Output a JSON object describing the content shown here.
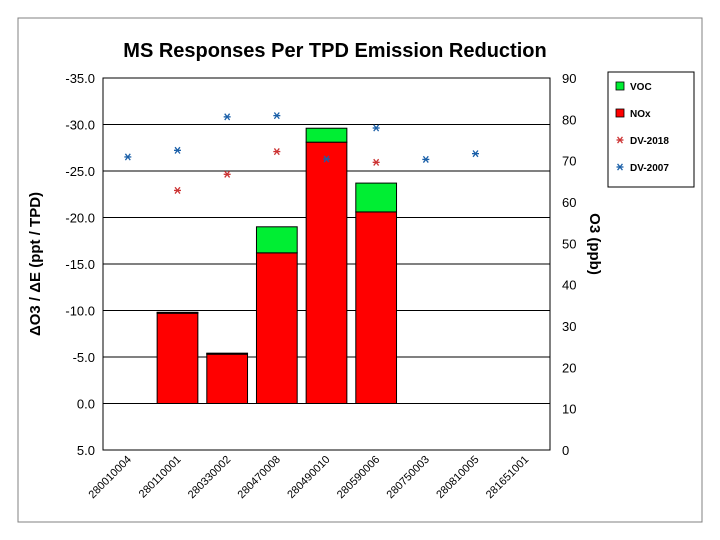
{
  "chart_data": {
    "type": "bar",
    "title": "MS Responses Per TPD Emission Reduction",
    "ylabel_left": "ΔO3 / ΔE (ppt / TPD)",
    "ylabel_right": "O3 (ppb)",
    "categories": [
      "280010004",
      "280110001",
      "280330002",
      "280470008",
      "280490010",
      "280590006",
      "280750003",
      "280810005",
      "281651001"
    ],
    "left_axis": {
      "min": -35,
      "max": 5,
      "reversed": true,
      "ticks": [
        -35,
        -30,
        -25,
        -20,
        -15,
        -10,
        -5,
        0,
        5
      ],
      "tick_labels": [
        "-35.0",
        "-30.0",
        "-25.0",
        "-20.0",
        "-15.0",
        "-10.0",
        "-5.0",
        "0.0",
        "5.0"
      ]
    },
    "right_axis": {
      "min": 0,
      "max": 90,
      "ticks": [
        0,
        10,
        20,
        30,
        40,
        50,
        60,
        70,
        80,
        90
      ],
      "tick_labels": [
        "0",
        "10",
        "20",
        "30",
        "40",
        "50",
        "60",
        "70",
        "80",
        "90"
      ]
    },
    "grid": "horizontal",
    "legend_position": "right",
    "series": [
      {
        "name": "NOx",
        "kind": "stacked-bar",
        "axis": "left",
        "color": "#ff0000",
        "values": [
          null,
          -9.8,
          -5.4,
          -16.2,
          -28.1,
          -20.6,
          null,
          null,
          null
        ]
      },
      {
        "name": "VOC",
        "kind": "stacked-bar",
        "axis": "left",
        "color": "#00ee33",
        "values": [
          null,
          0.1,
          0.0,
          -2.8,
          -1.5,
          -3.1,
          null,
          null,
          null
        ]
      },
      {
        "name": "DV-2018",
        "kind": "scatter",
        "axis": "right",
        "color": "#cc3333",
        "marker": "asterisk",
        "values": [
          null,
          62.8,
          66.7,
          72.2,
          null,
          69.6,
          null,
          null,
          null
        ]
      },
      {
        "name": "DV-2007",
        "kind": "scatter",
        "axis": "right",
        "color": "#1a5fa8",
        "marker": "asterisk",
        "values": [
          70.9,
          72.5,
          80.6,
          80.9,
          70.4,
          77.9,
          70.3,
          71.7,
          null
        ]
      }
    ]
  }
}
